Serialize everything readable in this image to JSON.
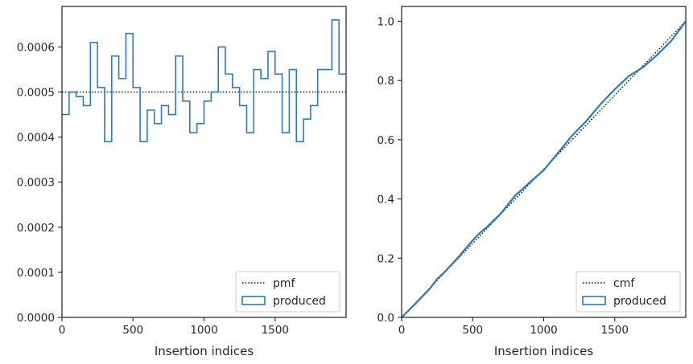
{
  "chart_data": [
    {
      "type": "step",
      "title": "",
      "xlabel": "Insertion indices",
      "ylabel": "",
      "xlim": [
        0,
        2000
      ],
      "ylim": [
        0,
        0.00069
      ],
      "xticks": [
        0,
        500,
        1000,
        1500
      ],
      "xtick_labels": [
        "0",
        "500",
        "1000",
        "1500"
      ],
      "yticks": [
        0,
        0.0001,
        0.0002,
        0.0003,
        0.0004,
        0.0005,
        0.0006
      ],
      "ytick_labels": [
        "0.0000",
        "0.0001",
        "0.0002",
        "0.0003",
        "0.0004",
        "0.0005",
        "0.0006"
      ],
      "grid": false,
      "legend_position": "lower-right",
      "bin_edges": [
        0,
        50,
        100,
        150,
        200,
        250,
        300,
        350,
        400,
        450,
        500,
        550,
        600,
        650,
        700,
        750,
        800,
        850,
        900,
        950,
        1000,
        1050,
        1100,
        1150,
        1200,
        1250,
        1300,
        1350,
        1400,
        1450,
        1500,
        1550,
        1600,
        1650,
        1700,
        1750,
        1800,
        1850,
        1900,
        1950,
        2000
      ],
      "series": [
        {
          "name": "pmf",
          "style": "dotted",
          "color": "#000000",
          "x": [
            0,
            2000
          ],
          "values": [
            0.0005,
            0.0005
          ]
        },
        {
          "name": "produced",
          "style": "step",
          "color": "#2b7bba",
          "values": [
            0.00045,
            0.0005,
            0.00049,
            0.00047,
            0.00061,
            0.00051,
            0.00039,
            0.00058,
            0.00053,
            0.00063,
            0.00051,
            0.00039,
            0.00046,
            0.00043,
            0.00047,
            0.00045,
            0.00058,
            0.00048,
            0.00041,
            0.00043,
            0.00048,
            0.0005,
            0.0006,
            0.00054,
            0.00051,
            0.00047,
            0.00041,
            0.00055,
            0.00053,
            0.00059,
            0.00054,
            0.00041,
            0.00055,
            0.00039,
            0.00044,
            0.00047,
            0.00055,
            0.00055,
            0.00066,
            0.00054
          ]
        }
      ]
    },
    {
      "type": "line",
      "title": "",
      "xlabel": "Insertion indices",
      "ylabel": "",
      "xlim": [
        0,
        2000
      ],
      "ylim": [
        0,
        1.05
      ],
      "xticks": [
        0,
        500,
        1000,
        1500
      ],
      "xtick_labels": [
        "0",
        "500",
        "1000",
        "1500"
      ],
      "yticks": [
        0,
        0.2,
        0.4,
        0.6,
        0.8,
        1.0
      ],
      "ytick_labels": [
        "0.0",
        "0.2",
        "0.4",
        "0.6",
        "0.8",
        "1.0"
      ],
      "grid": false,
      "legend_position": "lower-right",
      "series": [
        {
          "name": "cmf",
          "style": "dotted",
          "color": "#000000",
          "x": [
            0,
            2000
          ],
          "values": [
            0,
            1
          ]
        },
        {
          "name": "produced",
          "style": "solid",
          "color": "#2b7bba",
          "x": [
            0,
            100,
            200,
            250,
            300,
            400,
            500,
            550,
            600,
            700,
            800,
            900,
            1000,
            1100,
            1200,
            1300,
            1400,
            1500,
            1600,
            1700,
            1800,
            1900,
            2000
          ],
          "values": [
            0,
            0.048,
            0.098,
            0.13,
            0.152,
            0.204,
            0.26,
            0.285,
            0.305,
            0.352,
            0.412,
            0.455,
            0.497,
            0.555,
            0.614,
            0.663,
            0.72,
            0.77,
            0.815,
            0.845,
            0.887,
            0.935,
            1.0
          ]
        }
      ]
    }
  ]
}
